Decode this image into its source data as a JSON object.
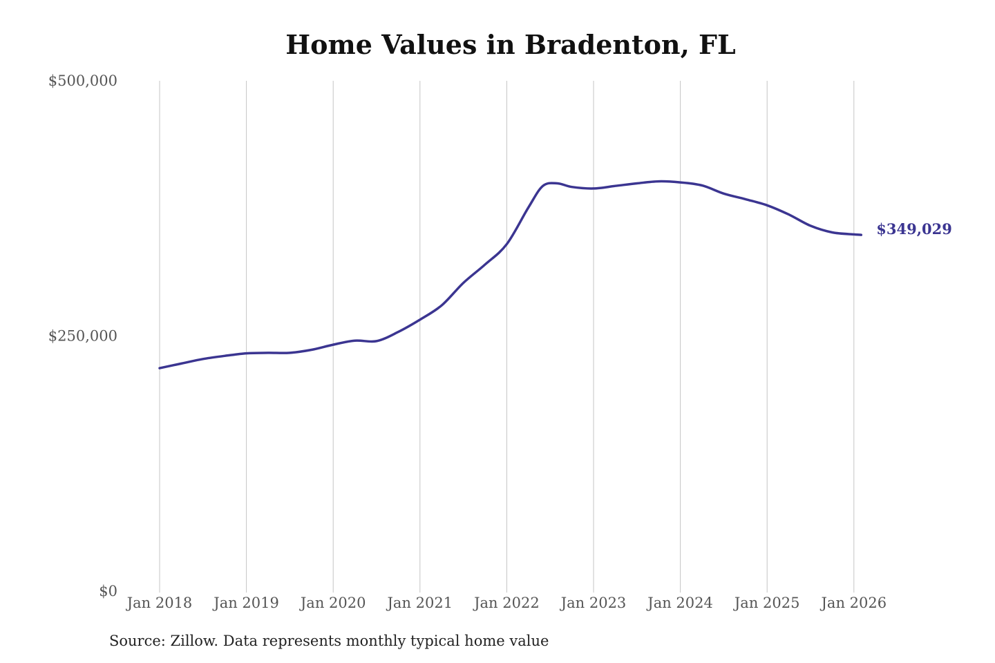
{
  "chart_data": {
    "type": "line",
    "title": "Home Values in Bradenton, FL",
    "xlabel": "",
    "ylabel": "",
    "ylim": [
      0,
      500000
    ],
    "y_ticks": [
      {
        "value": 0,
        "label": "$0"
      },
      {
        "value": 250000,
        "label": "$250,000"
      },
      {
        "value": 500000,
        "label": "$500,000"
      }
    ],
    "x_ticks": [
      {
        "value": "2018-01",
        "label": "Jan 2018"
      },
      {
        "value": "2019-01",
        "label": "Jan 2019"
      },
      {
        "value": "2020-01",
        "label": "Jan 2020"
      },
      {
        "value": "2021-01",
        "label": "Jan 2021"
      },
      {
        "value": "2022-01",
        "label": "Jan 2022"
      },
      {
        "value": "2023-01",
        "label": "Jan 2023"
      },
      {
        "value": "2024-01",
        "label": "Jan 2024"
      },
      {
        "value": "2025-01",
        "label": "Jan 2025"
      },
      {
        "value": "2026-01",
        "label": "Jan 2026"
      }
    ],
    "grid": "vertical",
    "line_color": "#3b3591",
    "series": [
      {
        "x": [
          "2018-01",
          "2018-04",
          "2018-07",
          "2018-10",
          "2019-01",
          "2019-04",
          "2019-07",
          "2019-10",
          "2020-01",
          "2020-04",
          "2020-07",
          "2020-10",
          "2021-01",
          "2021-04",
          "2021-07",
          "2021-10",
          "2022-01",
          "2022-04",
          "2022-06",
          "2022-08",
          "2022-10",
          "2023-01",
          "2023-04",
          "2023-07",
          "2023-10",
          "2024-01",
          "2024-04",
          "2024-07",
          "2024-10",
          "2025-01",
          "2025-04",
          "2025-07",
          "2025-10",
          "2026-01",
          "2026-02"
        ],
        "values": [
          218500,
          223000,
          227500,
          230500,
          233000,
          233500,
          233500,
          236500,
          241500,
          245500,
          245000,
          254000,
          266000,
          280000,
          302000,
          320000,
          340000,
          376000,
          397000,
          399500,
          396000,
          394500,
          397000,
          399500,
          401500,
          400500,
          397500,
          389500,
          384000,
          378000,
          369000,
          358000,
          351500,
          349500,
          349029
        ]
      }
    ],
    "end_label": "$349,029"
  },
  "source": "Source: Zillow. Data represents monthly typical home value"
}
